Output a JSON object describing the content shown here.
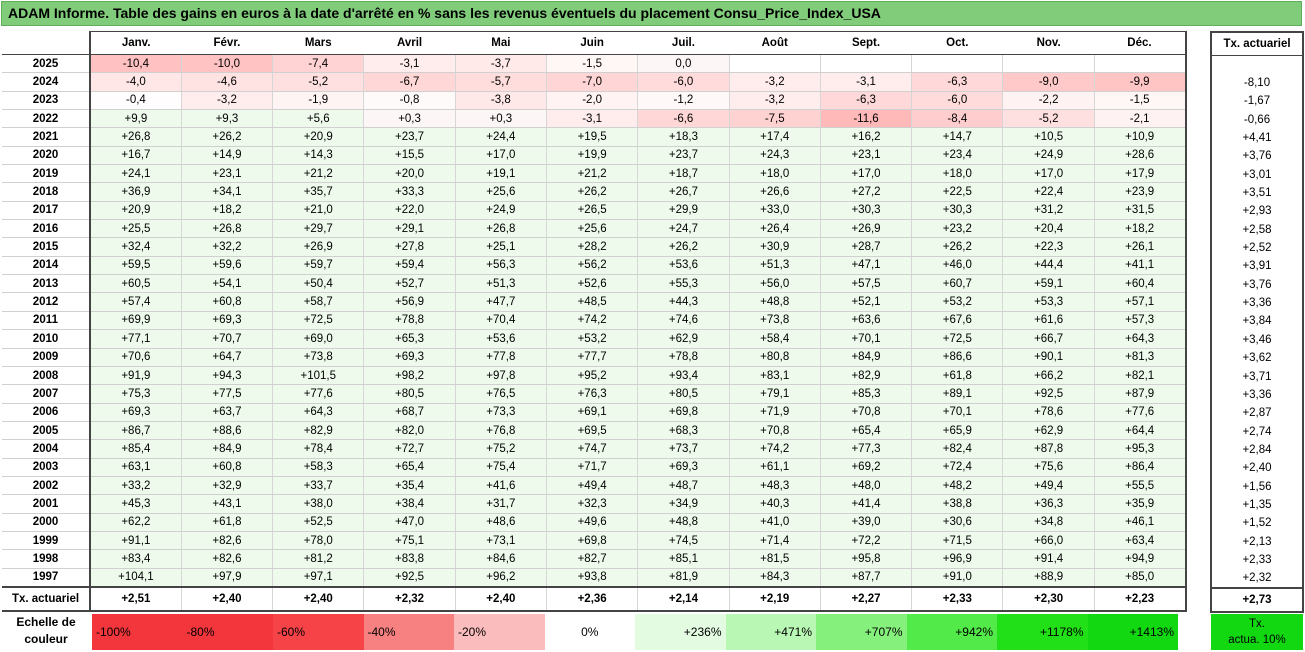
{
  "title": "ADAM Informe. Table des gains en euros à la date d'arrêté en % sans les revenus éventuels du placement Consu_Price_Index_USA",
  "months": [
    "Janv.",
    "Févr.",
    "Mars",
    "Avril",
    "Mai",
    "Juin",
    "Juil.",
    "Août",
    "Sept.",
    "Oct.",
    "Nov.",
    "Déc."
  ],
  "side_header": "Tx. actuariel",
  "rows": [
    {
      "year": "2025",
      "values": [
        "-10,4",
        "-10,0",
        "-7,4",
        "-3,1",
        "-3,7",
        "-1,5",
        "0,0",
        "",
        "",
        "",
        "",
        ""
      ],
      "tx": ""
    },
    {
      "year": "2024",
      "values": [
        "-4,0",
        "-4,6",
        "-5,2",
        "-6,7",
        "-5,7",
        "-7,0",
        "-6,0",
        "-3,2",
        "-3,1",
        "-6,3",
        "-9,0",
        "-9,9"
      ],
      "tx": "-8,10"
    },
    {
      "year": "2023",
      "values": [
        "-0,4",
        "-3,2",
        "-1,9",
        "-0,8",
        "-3,8",
        "-2,0",
        "-1,2",
        "-3,2",
        "-6,3",
        "-6,0",
        "-2,2",
        "-1,5"
      ],
      "tx": "-1,67"
    },
    {
      "year": "2022",
      "values": [
        "+9,9",
        "+9,3",
        "+5,6",
        "+0,3",
        "+0,3",
        "-3,1",
        "-6,6",
        "-7,5",
        "-11,6",
        "-8,4",
        "-5,2",
        "-2,1"
      ],
      "tx": "-0,66"
    },
    {
      "year": "2021",
      "values": [
        "+26,8",
        "+26,2",
        "+20,9",
        "+23,7",
        "+24,4",
        "+19,5",
        "+18,3",
        "+17,4",
        "+16,2",
        "+14,7",
        "+10,5",
        "+10,9"
      ],
      "tx": "+4,41"
    },
    {
      "year": "2020",
      "values": [
        "+16,7",
        "+14,9",
        "+14,3",
        "+15,5",
        "+17,0",
        "+19,9",
        "+23,7",
        "+24,3",
        "+23,1",
        "+23,4",
        "+24,9",
        "+28,6"
      ],
      "tx": "+3,76"
    },
    {
      "year": "2019",
      "values": [
        "+24,1",
        "+23,1",
        "+21,2",
        "+20,0",
        "+19,1",
        "+21,2",
        "+18,7",
        "+18,0",
        "+17,0",
        "+18,0",
        "+17,0",
        "+17,9"
      ],
      "tx": "+3,01"
    },
    {
      "year": "2018",
      "values": [
        "+36,9",
        "+34,1",
        "+35,7",
        "+33,3",
        "+25,6",
        "+26,2",
        "+26,7",
        "+26,6",
        "+27,2",
        "+22,5",
        "+22,4",
        "+23,9"
      ],
      "tx": "+3,51"
    },
    {
      "year": "2017",
      "values": [
        "+20,9",
        "+18,2",
        "+21,0",
        "+22,0",
        "+24,9",
        "+26,5",
        "+29,9",
        "+33,0",
        "+30,3",
        "+30,3",
        "+31,2",
        "+31,5"
      ],
      "tx": "+2,93"
    },
    {
      "year": "2016",
      "values": [
        "+25,5",
        "+26,8",
        "+29,7",
        "+29,1",
        "+26,8",
        "+25,6",
        "+24,7",
        "+26,4",
        "+26,9",
        "+23,2",
        "+20,4",
        "+18,2"
      ],
      "tx": "+2,58"
    },
    {
      "year": "2015",
      "values": [
        "+32,4",
        "+32,2",
        "+26,9",
        "+27,8",
        "+25,1",
        "+28,2",
        "+26,2",
        "+30,9",
        "+28,7",
        "+26,2",
        "+22,3",
        "+26,1"
      ],
      "tx": "+2,52"
    },
    {
      "year": "2014",
      "values": [
        "+59,5",
        "+59,6",
        "+59,7",
        "+59,4",
        "+56,3",
        "+56,2",
        "+53,6",
        "+51,3",
        "+47,1",
        "+46,0",
        "+44,4",
        "+41,1"
      ],
      "tx": "+3,91"
    },
    {
      "year": "2013",
      "values": [
        "+60,5",
        "+54,1",
        "+50,4",
        "+52,7",
        "+51,3",
        "+52,6",
        "+55,3",
        "+56,0",
        "+57,5",
        "+60,7",
        "+59,1",
        "+60,4"
      ],
      "tx": "+3,76"
    },
    {
      "year": "2012",
      "values": [
        "+57,4",
        "+60,8",
        "+58,7",
        "+56,9",
        "+47,7",
        "+48,5",
        "+44,3",
        "+48,8",
        "+52,1",
        "+53,2",
        "+53,3",
        "+57,1"
      ],
      "tx": "+3,36"
    },
    {
      "year": "2011",
      "values": [
        "+69,9",
        "+69,3",
        "+72,5",
        "+78,8",
        "+70,4",
        "+74,2",
        "+74,6",
        "+73,8",
        "+63,6",
        "+67,6",
        "+61,6",
        "+57,3"
      ],
      "tx": "+3,84"
    },
    {
      "year": "2010",
      "values": [
        "+77,1",
        "+70,7",
        "+69,0",
        "+65,3",
        "+53,6",
        "+53,2",
        "+62,9",
        "+58,4",
        "+70,1",
        "+72,5",
        "+66,7",
        "+64,3"
      ],
      "tx": "+3,46"
    },
    {
      "year": "2009",
      "values": [
        "+70,6",
        "+64,7",
        "+73,8",
        "+69,3",
        "+77,8",
        "+77,7",
        "+78,8",
        "+80,8",
        "+84,9",
        "+86,6",
        "+90,1",
        "+81,3"
      ],
      "tx": "+3,62"
    },
    {
      "year": "2008",
      "values": [
        "+91,9",
        "+94,3",
        "+101,5",
        "+98,2",
        "+97,8",
        "+95,2",
        "+93,4",
        "+83,1",
        "+82,9",
        "+61,8",
        "+66,2",
        "+82,1"
      ],
      "tx": "+3,71"
    },
    {
      "year": "2007",
      "values": [
        "+75,3",
        "+77,5",
        "+77,6",
        "+80,5",
        "+76,5",
        "+76,3",
        "+80,5",
        "+79,1",
        "+85,3",
        "+89,1",
        "+92,5",
        "+87,9"
      ],
      "tx": "+3,36"
    },
    {
      "year": "2006",
      "values": [
        "+69,3",
        "+63,7",
        "+64,3",
        "+68,7",
        "+73,3",
        "+69,1",
        "+69,8",
        "+71,9",
        "+70,8",
        "+70,1",
        "+78,6",
        "+77,6"
      ],
      "tx": "+2,87"
    },
    {
      "year": "2005",
      "values": [
        "+86,7",
        "+88,6",
        "+82,9",
        "+82,0",
        "+76,8",
        "+69,5",
        "+68,3",
        "+70,8",
        "+65,4",
        "+65,9",
        "+62,9",
        "+64,4"
      ],
      "tx": "+2,74"
    },
    {
      "year": "2004",
      "values": [
        "+85,4",
        "+84,9",
        "+78,4",
        "+72,7",
        "+75,2",
        "+74,7",
        "+73,7",
        "+74,2",
        "+77,3",
        "+82,4",
        "+87,8",
        "+95,3"
      ],
      "tx": "+2,84"
    },
    {
      "year": "2003",
      "values": [
        "+63,1",
        "+60,8",
        "+58,3",
        "+65,4",
        "+75,4",
        "+71,7",
        "+69,3",
        "+61,1",
        "+69,2",
        "+72,4",
        "+75,6",
        "+86,4"
      ],
      "tx": "+2,40"
    },
    {
      "year": "2002",
      "values": [
        "+33,2",
        "+32,9",
        "+33,7",
        "+35,4",
        "+41,6",
        "+49,4",
        "+48,7",
        "+48,3",
        "+48,0",
        "+48,2",
        "+49,4",
        "+55,5"
      ],
      "tx": "+1,56"
    },
    {
      "year": "2001",
      "values": [
        "+45,3",
        "+43,1",
        "+38,0",
        "+38,4",
        "+31,7",
        "+32,3",
        "+34,9",
        "+40,3",
        "+41,4",
        "+38,8",
        "+36,3",
        "+35,9"
      ],
      "tx": "+1,35"
    },
    {
      "year": "2000",
      "values": [
        "+62,2",
        "+61,8",
        "+52,5",
        "+47,0",
        "+48,6",
        "+49,6",
        "+48,8",
        "+41,0",
        "+39,0",
        "+30,6",
        "+34,8",
        "+46,1"
      ],
      "tx": "+1,52"
    },
    {
      "year": "1999",
      "values": [
        "+91,1",
        "+82,6",
        "+78,0",
        "+75,1",
        "+73,1",
        "+69,8",
        "+74,5",
        "+71,4",
        "+72,2",
        "+71,5",
        "+66,0",
        "+63,4"
      ],
      "tx": "+2,13"
    },
    {
      "year": "1998",
      "values": [
        "+83,4",
        "+82,6",
        "+81,2",
        "+83,8",
        "+84,6",
        "+82,7",
        "+85,1",
        "+81,5",
        "+95,8",
        "+96,9",
        "+91,4",
        "+94,9"
      ],
      "tx": "+2,33"
    },
    {
      "year": "1997",
      "values": [
        "+104,1",
        "+97,9",
        "+97,1",
        "+92,5",
        "+96,2",
        "+93,8",
        "+81,9",
        "+84,3",
        "+87,7",
        "+91,0",
        "+88,9",
        "+85,0"
      ],
      "tx": "+2,32"
    }
  ],
  "avg_row": {
    "label": "Tx. actuariel",
    "values": [
      "+2,51",
      "+2,40",
      "+2,40",
      "+2,32",
      "+2,40",
      "+2,36",
      "+2,14",
      "+2,19",
      "+2,27",
      "+2,33",
      "+2,30",
      "+2,23"
    ],
    "tx": "+2,73"
  },
  "scale": {
    "label_line1": "Echelle de",
    "label_line2": "couleur",
    "items": [
      {
        "text": "-100%",
        "color": "#f2363b",
        "align": "l"
      },
      {
        "text": "-80%",
        "color": "#f2363b",
        "align": "l"
      },
      {
        "text": "-60%",
        "color": "#f54347",
        "align": "l"
      },
      {
        "text": "-40%",
        "color": "#f78080",
        "align": "l"
      },
      {
        "text": "-20%",
        "color": "#fabcbc",
        "align": "l"
      },
      {
        "text": "0%",
        "color": "#ffffff",
        "align": "c"
      },
      {
        "text": "+236%",
        "color": "#e3fbe1",
        "align": "r"
      },
      {
        "text": "+471%",
        "color": "#b9f7b4",
        "align": "r"
      },
      {
        "text": "+707%",
        "color": "#86f07d",
        "align": "r"
      },
      {
        "text": "+942%",
        "color": "#52ea48",
        "align": "r"
      },
      {
        "text": "+1178%",
        "color": "#22e017",
        "align": "r"
      },
      {
        "text": "+1413%",
        "color": "#12d812",
        "align": "r"
      }
    ],
    "avg_box_line1": "Tx.",
    "avg_box_line2": "actua. 10%"
  }
}
